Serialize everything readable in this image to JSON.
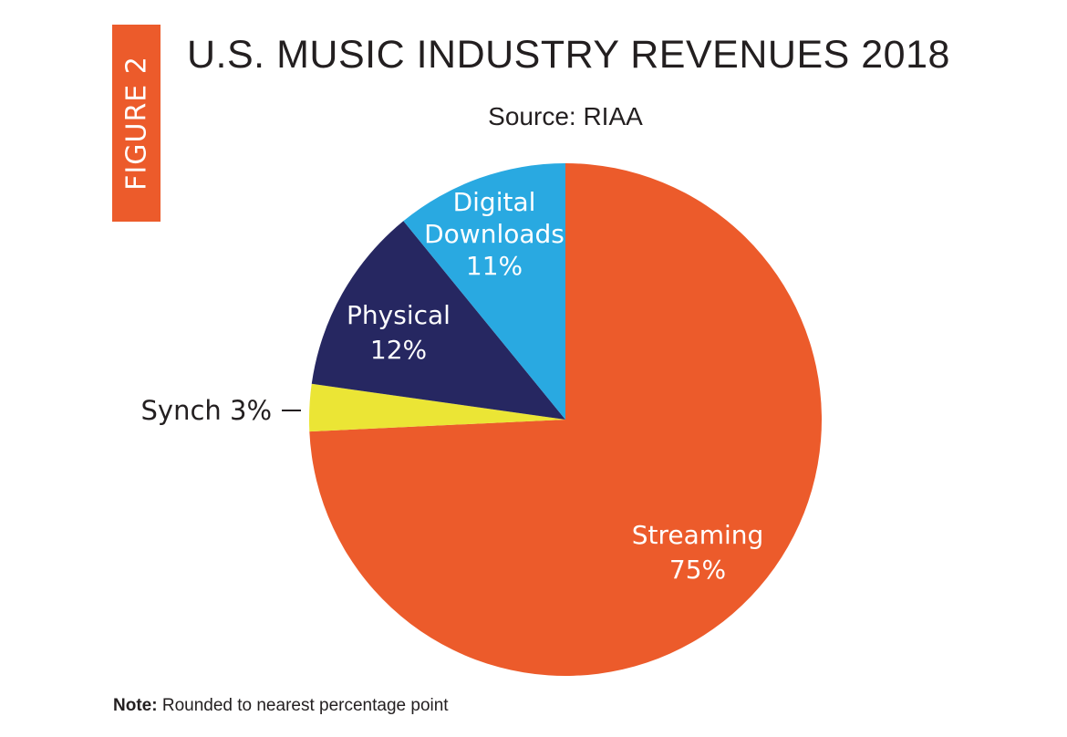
{
  "figure_label": "FIGURE 2",
  "chart_data": {
    "type": "pie",
    "title": "U.S. MUSIC INDUSTRY REVENUES 2018",
    "subtitle": "Source: RIAA",
    "slices": [
      {
        "label_lines": [
          "Streaming",
          "75%"
        ],
        "value": 75,
        "color": "#ec5b2b",
        "label_color": "#ffffff"
      },
      {
        "label_lines": [
          "Synch 3%"
        ],
        "value": 3,
        "color": "#ebe535",
        "label_color": "#231f20"
      },
      {
        "label_lines": [
          "Physical",
          "12%"
        ],
        "value": 12,
        "color": "#262761",
        "label_color": "#ffffff"
      },
      {
        "label_lines": [
          "Digital",
          "Downloads",
          "11%"
        ],
        "value": 11,
        "color": "#29a9e1",
        "label_color": "#ffffff"
      }
    ]
  },
  "note": {
    "label": "Note:",
    "text": " Rounded to nearest percentage point"
  }
}
